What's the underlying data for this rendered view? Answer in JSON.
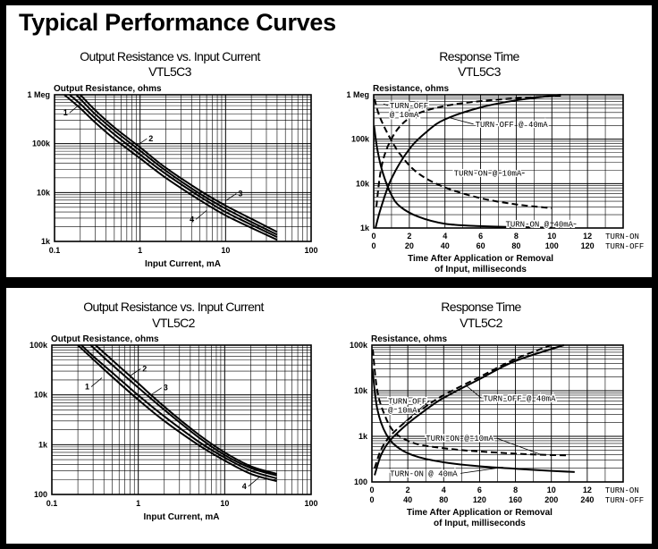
{
  "page_title": "Typical Performance Curves",
  "chart_data": [
    {
      "id": "c1",
      "type": "line",
      "title": "Output Resistance vs. Input Current",
      "subtitle": "VTL5C3",
      "ylabel": "Output Resistance, ohms",
      "xlabel": "Input Current, mA",
      "x_scale": "log",
      "y_scale": "log",
      "xlim": [
        0.1,
        100
      ],
      "ylim": [
        1000,
        1000000
      ],
      "x_ticks": [
        {
          "v": 0.1,
          "label": "0.1"
        },
        {
          "v": 1,
          "label": "1"
        },
        {
          "v": 10,
          "label": "10"
        },
        {
          "v": 100,
          "label": "100"
        }
      ],
      "y_ticks": [
        {
          "v": 1000,
          "label": "1k"
        },
        {
          "v": 10000,
          "label": "10k"
        },
        {
          "v": 100000,
          "label": "100k"
        },
        {
          "v": 1000000,
          "label": "1 Meg"
        }
      ],
      "grid": true,
      "series": [
        {
          "name": "1",
          "x": [
            0.15,
            0.2,
            0.3,
            0.5,
            1,
            2,
            5,
            10,
            20,
            40
          ],
          "y": [
            1000000,
            650000,
            330000,
            155000,
            60000,
            24000,
            8300,
            4000,
            2200,
            1230
          ]
        },
        {
          "name": "2",
          "x": [
            0.18,
            0.2,
            0.3,
            0.5,
            1,
            2,
            5,
            10,
            20,
            40
          ],
          "y": [
            1000000,
            820000,
            400000,
            185000,
            72000,
            28000,
            9500,
            4700,
            2500,
            1380
          ]
        },
        {
          "name": "3",
          "x": [
            0.2,
            0.3,
            0.5,
            1,
            2,
            5,
            10,
            20,
            40
          ],
          "y": [
            1000000,
            480000,
            215000,
            84000,
            32000,
            11000,
            5400,
            2900,
            1560
          ]
        },
        {
          "name": "4",
          "x": [
            0.13,
            0.2,
            0.3,
            0.5,
            1,
            2,
            5,
            10,
            20,
            40
          ],
          "y": [
            1000000,
            530000,
            270000,
            125000,
            50000,
            20000,
            7000,
            3400,
            1900,
            1080
          ]
        }
      ],
      "callouts": [
        {
          "label": "1",
          "x": 0.2,
          "y": 650000
        },
        {
          "label": "2",
          "x": 0.9,
          "y": 90000
        },
        {
          "label": "3",
          "x": 10,
          "y": 6800
        },
        {
          "label": "4",
          "x": 6,
          "y": 4300
        }
      ]
    },
    {
      "id": "c2",
      "type": "line",
      "title": "Response Time",
      "subtitle": "VTL5C3",
      "ylabel": "Resistance, ohms",
      "xlabel_lines": [
        "Time After Application or Removal",
        "of Input, milliseconds"
      ],
      "y_scale": "log",
      "xlim": [
        0,
        14
      ],
      "ylim": [
        1000,
        1000000
      ],
      "x_ticks_on": {
        "label": "TURN-ON",
        "ticks": [
          0,
          2,
          4,
          6,
          8,
          10,
          12
        ]
      },
      "x_ticks_off": {
        "label": "TURN-OFF",
        "ticks": [
          0,
          20,
          40,
          60,
          80,
          100,
          120
        ]
      },
      "y_ticks": [
        {
          "v": 1000,
          "label": "1k"
        },
        {
          "v": 10000,
          "label": "10k"
        },
        {
          "v": 100000,
          "label": "100k"
        },
        {
          "v": 1000000,
          "label": "1 Meg"
        }
      ],
      "grid": true,
      "series": [
        {
          "name": "TURN-OFF @ 10mA",
          "style": "dashed",
          "x": [
            0.15,
            0.4,
            0.8,
            1.5,
            2.5,
            4,
            6,
            8.5,
            10.5
          ],
          "y": [
            3000,
            20000,
            70000,
            200000,
            380000,
            560000,
            720000,
            860000,
            950000
          ]
        },
        {
          "name": "TURN-OFF @ 40mA",
          "style": "solid",
          "x": [
            0.1,
            0.4,
            1,
            2,
            3,
            4,
            6,
            8,
            10.5
          ],
          "y": [
            1000,
            2800,
            13000,
            60000,
            150000,
            280000,
            520000,
            750000,
            1000000
          ]
        },
        {
          "name": "TURN-ON @ 10mA",
          "style": "dashed",
          "x": [
            0.05,
            0.3,
            0.8,
            1.5,
            2.5,
            4,
            6,
            8,
            10
          ],
          "y": [
            800000,
            350000,
            130000,
            45000,
            17000,
            8200,
            4700,
            3400,
            2800
          ]
        },
        {
          "name": "TURN-ON @ 40mA",
          "style": "solid",
          "x": [
            0.02,
            0.2,
            0.5,
            1,
            1.5,
            2.5,
            4,
            6,
            8,
            10
          ],
          "y": [
            200000,
            60000,
            18000,
            5500,
            3000,
            1800,
            1250,
            1100,
            1050,
            1020
          ]
        }
      ],
      "annotations": [
        {
          "lines": [
            "TURN-OFF",
            "@ 10mA"
          ],
          "x": 0.55,
          "y": 620000,
          "tx": 0.9,
          "ty": 500000
        },
        {
          "lines": [
            "TURN-OFF @ 40mA"
          ],
          "x": 4.3,
          "y": 300000,
          "tx": 5.7,
          "ty": 190000
        },
        {
          "lines": [
            "TURN-ON @ 10mA"
          ],
          "x": 5.7,
          "y": 17500,
          "tx": 4.5,
          "ty": 15000
        },
        {
          "lines": [
            "TURN-ON @ 40mA"
          ],
          "x": 9.8,
          "y": 1320,
          "tx": 7.4,
          "ty": 1080
        }
      ]
    },
    {
      "id": "c3",
      "type": "line",
      "title": "Output Resistance vs. Input Current",
      "subtitle": "VTL5C2",
      "ylabel": "Output Resistance, ohms",
      "xlabel": "Input Current, mA",
      "x_scale": "log",
      "y_scale": "log",
      "xlim": [
        0.1,
        100
      ],
      "ylim": [
        100,
        100000
      ],
      "x_ticks": [
        {
          "v": 0.1,
          "label": "0.1"
        },
        {
          "v": 1,
          "label": "1"
        },
        {
          "v": 10,
          "label": "10"
        },
        {
          "v": 100,
          "label": "100"
        }
      ],
      "y_ticks": [
        {
          "v": 100,
          "label": "100"
        },
        {
          "v": 1000,
          "label": "1k"
        },
        {
          "v": 10000,
          "label": "10k"
        },
        {
          "v": 100000,
          "label": "100k"
        }
      ],
      "grid": true,
      "series": [
        {
          "name": "1",
          "x": [
            0.22,
            0.3,
            0.5,
            1,
            2,
            5,
            10,
            20,
            40
          ],
          "y": [
            100000,
            60000,
            28000,
            9800,
            3700,
            1150,
            550,
            300,
            210
          ]
        },
        {
          "name": "2",
          "x": [
            0.28,
            0.3,
            0.5,
            1,
            2,
            5,
            10,
            20,
            40
          ],
          "y": [
            100000,
            90000,
            40000,
            14000,
            5000,
            1400,
            620,
            340,
            240
          ]
        },
        {
          "name": "3",
          "x": [
            0.32,
            0.5,
            1,
            2,
            5,
            10,
            20,
            40
          ],
          "y": [
            100000,
            50000,
            17000,
            5800,
            1600,
            700,
            370,
            260
          ]
        },
        {
          "name": "4",
          "x": [
            0.2,
            0.3,
            0.5,
            1,
            2,
            5,
            10,
            20,
            40
          ],
          "y": [
            100000,
            52000,
            23000,
            8000,
            3000,
            980,
            480,
            260,
            185
          ]
        }
      ],
      "callouts": [
        {
          "label": "1",
          "x": 0.38,
          "y": 22000
        },
        {
          "label": "2",
          "x": 0.8,
          "y": 24000
        },
        {
          "label": "3",
          "x": 1.4,
          "y": 10000
        },
        {
          "label": "4",
          "x": 25,
          "y": 220
        }
      ]
    },
    {
      "id": "c4",
      "type": "line",
      "title": "Response Time",
      "subtitle": "VTL5C2",
      "ylabel": "Resistance, ohms",
      "xlabel_lines": [
        "Time After Application or Removal",
        "of Input, milliseconds"
      ],
      "y_scale": "log",
      "xlim": [
        0,
        14
      ],
      "ylim": [
        100,
        100000
      ],
      "x_ticks_on": {
        "label": "TURN-ON",
        "ticks": [
          0,
          2,
          4,
          6,
          8,
          10,
          12
        ]
      },
      "x_ticks_off": {
        "label": "TURN-OFF",
        "ticks": [
          0,
          40,
          80,
          120,
          160,
          200,
          240
        ]
      },
      "y_ticks": [
        {
          "v": 100,
          "label": "100"
        },
        {
          "v": 1000,
          "label": "1k"
        },
        {
          "v": 10000,
          "label": "10k"
        },
        {
          "v": 100000,
          "label": "100k"
        }
      ],
      "grid": true,
      "series": [
        {
          "name": "TURN-OFF @ 10mA",
          "style": "dashed",
          "x": [
            0.15,
            0.5,
            1,
            2,
            3,
            4,
            6,
            8,
            10
          ],
          "y": [
            200,
            500,
            1000,
            2300,
            4500,
            8000,
            20000,
            50000,
            100000
          ]
        },
        {
          "name": "TURN-OFF @ 40mA",
          "style": "solid",
          "x": [
            0.15,
            0.5,
            1,
            2,
            3,
            4,
            6,
            8,
            10.7
          ],
          "y": [
            140,
            380,
            800,
            1900,
            3800,
            7000,
            18000,
            45000,
            100000
          ]
        },
        {
          "name": "TURN-ON @ 10mA",
          "style": "dashed",
          "x": [
            0.05,
            0.3,
            0.7,
            1.2,
            2,
            3,
            5,
            7,
            9,
            11
          ],
          "y": [
            80000,
            10000,
            3000,
            1300,
            800,
            620,
            500,
            440,
            400,
            380
          ]
        },
        {
          "name": "TURN-ON @ 40mA",
          "style": "solid",
          "x": [
            0.03,
            0.3,
            0.8,
            1.5,
            2.5,
            4,
            6,
            8,
            10,
            11.3
          ],
          "y": [
            30000,
            4000,
            1100,
            550,
            360,
            270,
            220,
            195,
            175,
            165
          ]
        }
      ],
      "annotations": [
        {
          "lines": [
            "TURN-OFF",
            "@ 10mA"
          ],
          "x": 1.5,
          "y": 1600,
          "tx": 0.9,
          "ty": 5200
        },
        {
          "lines": [
            "TURN-OFF @ 40mA"
          ],
          "x": 5.3,
          "y": 12500,
          "tx": 6.2,
          "ty": 6000
        },
        {
          "lines": [
            "TURN-ON @ 10mA"
          ],
          "x": 9.4,
          "y": 400,
          "tx": 3.0,
          "ty": 800
        },
        {
          "lines": [
            "TURN-ON @ 40mA"
          ],
          "x": 7.3,
          "y": 210,
          "tx": 1.0,
          "ty": 135
        }
      ]
    }
  ]
}
